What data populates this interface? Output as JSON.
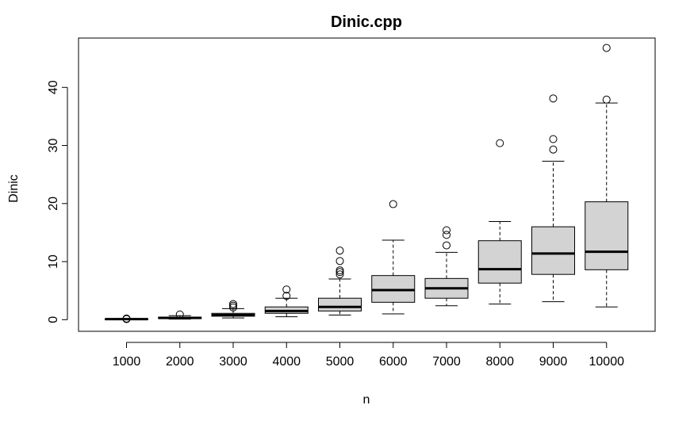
{
  "chart_data": {
    "type": "boxplot",
    "title": "Dinic.cpp",
    "xlabel": "n",
    "ylabel": "Dinic",
    "ylim": [
      -2,
      48.5
    ],
    "yticks": [
      0,
      10,
      20,
      30,
      40
    ],
    "grid": false,
    "categories": [
      "1000",
      "2000",
      "3000",
      "4000",
      "5000",
      "6000",
      "7000",
      "8000",
      "9000",
      "10000"
    ],
    "boxes": [
      {
        "min": 0.0,
        "q1": 0.05,
        "median": 0.1,
        "q3": 0.15,
        "max": 0.2,
        "outliers": [
          0.2,
          0.1
        ]
      },
      {
        "min": 0.1,
        "q1": 0.2,
        "median": 0.3,
        "q3": 0.45,
        "max": 0.7,
        "outliers": [
          0.9
        ]
      },
      {
        "min": 0.3,
        "q1": 0.6,
        "median": 0.8,
        "q3": 1.1,
        "max": 1.9,
        "outliers": [
          2.1,
          2.4,
          2.7
        ]
      },
      {
        "min": 0.5,
        "q1": 1.1,
        "median": 1.5,
        "q3": 2.2,
        "max": 3.7,
        "outliers": [
          4.1,
          5.2
        ]
      },
      {
        "min": 0.8,
        "q1": 1.5,
        "median": 2.2,
        "q3": 3.7,
        "max": 7.0,
        "outliers": [
          7.8,
          8.2,
          8.5,
          10.1,
          11.9
        ]
      },
      {
        "min": 1.0,
        "q1": 3.0,
        "median": 5.1,
        "q3": 7.6,
        "max": 13.7,
        "outliers": [
          19.9
        ]
      },
      {
        "min": 2.4,
        "q1": 3.7,
        "median": 5.4,
        "q3": 7.1,
        "max": 11.6,
        "outliers": [
          12.8,
          14.6,
          15.4
        ]
      },
      {
        "min": 2.7,
        "q1": 6.3,
        "median": 8.7,
        "q3": 13.6,
        "max": 16.9,
        "outliers": [
          30.4
        ]
      },
      {
        "min": 3.1,
        "q1": 7.8,
        "median": 11.4,
        "q3": 16.0,
        "max": 27.3,
        "outliers": [
          29.3,
          31.1,
          38.1
        ]
      },
      {
        "min": 2.2,
        "q1": 8.6,
        "median": 11.7,
        "q3": 20.3,
        "max": 37.3,
        "outliers": [
          37.9,
          46.8
        ]
      }
    ],
    "colors": {
      "box_fill": "#d3d3d3",
      "stroke": "#000000"
    }
  }
}
